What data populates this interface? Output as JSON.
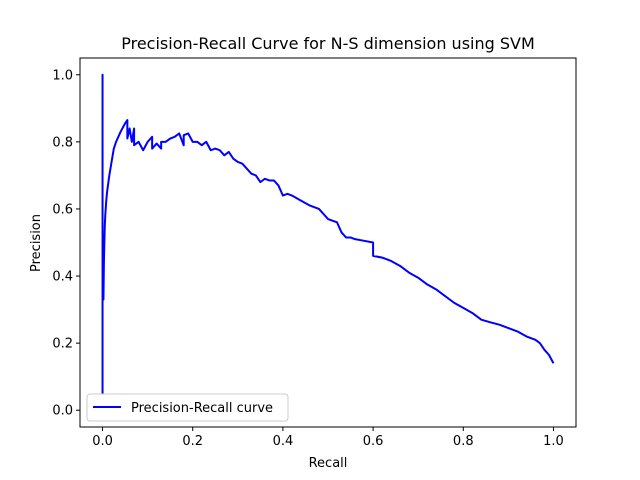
{
  "chart_data": {
    "type": "line",
    "title": "Precision-Recall Curve for N-S dimension using SVM",
    "xlabel": "Recall",
    "ylabel": "Precision",
    "xlim": [
      -0.05,
      1.05
    ],
    "ylim": [
      -0.05,
      1.05
    ],
    "xticks": [
      "0.0",
      "0.2",
      "0.4",
      "0.6",
      "0.8",
      "1.0"
    ],
    "yticks": [
      "0.0",
      "0.2",
      "0.4",
      "0.6",
      "0.8",
      "1.0"
    ],
    "grid": false,
    "legend_position": "lower-left",
    "series": [
      {
        "name": "Precision-Recall curve",
        "color": "#0000ff",
        "x": [
          0.0,
          0.0,
          0.0,
          0.001,
          0.002,
          0.003,
          0.004,
          0.005,
          0.006,
          0.008,
          0.01,
          0.015,
          0.02,
          0.025,
          0.03,
          0.04,
          0.05,
          0.055,
          0.055,
          0.06,
          0.065,
          0.07,
          0.07,
          0.08,
          0.09,
          0.1,
          0.11,
          0.11,
          0.12,
          0.13,
          0.13,
          0.14,
          0.15,
          0.16,
          0.17,
          0.18,
          0.18,
          0.19,
          0.2,
          0.21,
          0.22,
          0.23,
          0.24,
          0.25,
          0.26,
          0.27,
          0.28,
          0.29,
          0.3,
          0.31,
          0.32,
          0.33,
          0.34,
          0.35,
          0.36,
          0.37,
          0.38,
          0.39,
          0.4,
          0.41,
          0.42,
          0.44,
          0.46,
          0.48,
          0.5,
          0.52,
          0.53,
          0.54,
          0.55,
          0.56,
          0.58,
          0.6,
          0.6,
          0.62,
          0.64,
          0.66,
          0.68,
          0.7,
          0.72,
          0.74,
          0.76,
          0.78,
          0.8,
          0.82,
          0.84,
          0.86,
          0.88,
          0.9,
          0.92,
          0.94,
          0.96,
          0.97,
          0.98,
          0.99,
          1.0
        ],
        "y": [
          0.05,
          1.0,
          0.33,
          0.5,
          0.33,
          0.44,
          0.5,
          0.55,
          0.58,
          0.62,
          0.65,
          0.7,
          0.74,
          0.78,
          0.8,
          0.83,
          0.855,
          0.865,
          0.81,
          0.84,
          0.8,
          0.84,
          0.79,
          0.8,
          0.775,
          0.8,
          0.815,
          0.78,
          0.795,
          0.78,
          0.8,
          0.8,
          0.81,
          0.815,
          0.825,
          0.79,
          0.82,
          0.825,
          0.8,
          0.8,
          0.79,
          0.8,
          0.775,
          0.78,
          0.775,
          0.76,
          0.77,
          0.75,
          0.74,
          0.735,
          0.72,
          0.705,
          0.7,
          0.68,
          0.69,
          0.685,
          0.685,
          0.67,
          0.64,
          0.645,
          0.64,
          0.625,
          0.61,
          0.6,
          0.57,
          0.56,
          0.53,
          0.515,
          0.515,
          0.51,
          0.505,
          0.5,
          0.46,
          0.455,
          0.445,
          0.43,
          0.41,
          0.395,
          0.375,
          0.36,
          0.34,
          0.32,
          0.305,
          0.29,
          0.27,
          0.262,
          0.255,
          0.245,
          0.235,
          0.22,
          0.21,
          0.2,
          0.18,
          0.165,
          0.14
        ]
      }
    ]
  }
}
